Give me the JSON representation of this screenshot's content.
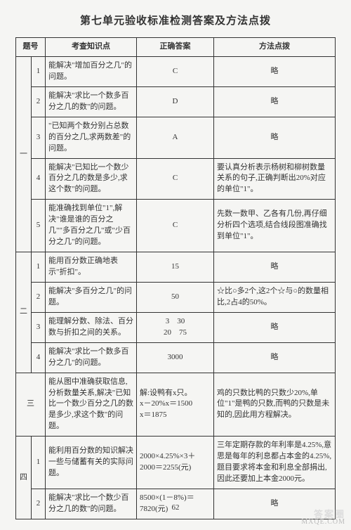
{
  "title": "第七单元验收标准检测答案及方法点拨",
  "headers": {
    "num": "题号",
    "kp": "考查知识点",
    "ans": "正确答案",
    "tip": "方法点拨"
  },
  "groups": {
    "g1": "一",
    "g2": "二",
    "g3": "三",
    "g4": "四"
  },
  "rows": {
    "r1_1": {
      "n": "1",
      "kp": "能解决\"增加百分之几\"的问题。",
      "ans": "C",
      "tip": "略"
    },
    "r1_2": {
      "n": "2",
      "kp": "能解决\"求比一个数多百分之几的数\"的问题。",
      "ans": "D",
      "tip": "略"
    },
    "r1_3": {
      "n": "3",
      "kp": "\"已知两个数分别占总数的百分之几,求两数差\"的问题。",
      "ans": "A",
      "tip": "略"
    },
    "r1_4": {
      "n": "4",
      "kp": "能解决\"已知比一个数少百分之几的数是多少,求这个数\"的问题。",
      "ans": "C",
      "tip": "要认真分析表示杨树和柳树数量关系的句子,正确判断出20%对应的单位\"1\"。"
    },
    "r1_5": {
      "n": "5",
      "kp": "能准确找到单位\"1\",解决\"谁是谁的百分之几\"\"多百分之几\"或\"少百分之几\"的问题。",
      "ans": "C",
      "tip": "先数一数甲、乙各有几份,再仔细分析四个选项,结合线段图准确找到单位\"1\"。"
    },
    "r2_1": {
      "n": "1",
      "kp": "能用百分数正确地表示\"折扣\"。",
      "ans": "15",
      "tip": "略"
    },
    "r2_2": {
      "n": "2",
      "kp": "能解决\"多百分之几\"的问题。",
      "ans": "50",
      "tip": "☆比○多2个,这2个☆与○的数量相比,2占4的50%。"
    },
    "r2_3": {
      "n": "3",
      "kp": "能理解分数、除法、百分数与折扣之间的关系。",
      "ans": "3　30\n20　75",
      "tip": "略"
    },
    "r2_4": {
      "n": "4",
      "kp": "能解决\"求比一个数多百分之几\"的问题。",
      "ans": "3000",
      "tip": "略"
    },
    "r3": {
      "kp": "能从图中准确获取信息,分析数量关系,解决\"已知比一个数少百分之几的数是多少,求这个数\"的问题。",
      "ans": "解:设鸭有x只。\nx－20%x＝1500\nx＝1875",
      "tip": "鸡的只数比鸭的只数少20%,单位\"1\"是鸭的只数,而鸭的只数是未知的,因此用方程解决。"
    },
    "r4_1": {
      "n": "1",
      "kp": "能利用百分数的知识解决一些与储蓄有关的实际问题。",
      "ans": "2000×4.25%×3＋2000＝2255(元)",
      "tip": "三年定期存款的年利率是4.25%,意思是每年的利息都占本金的4.25%,题目要求将本金和利息全部捐出,因此还要加上本金2000元。"
    },
    "r4_2": {
      "n": "2",
      "kp": "能解决\"求比一个数少百分之几的数\"的问题。",
      "ans": "8500×(1－8%)＝7820(元)",
      "tip": "略"
    }
  },
  "pageNum": "62",
  "watermark1": "答案圈",
  "watermark2": "MXQE.COM"
}
